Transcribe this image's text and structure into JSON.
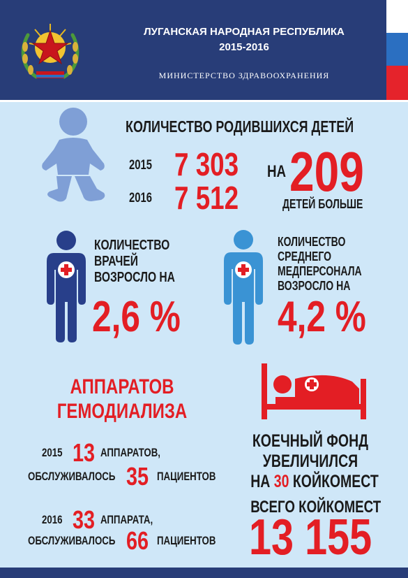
{
  "header": {
    "title_line1": "ЛУГАНСКАЯ НАРОДНАЯ РЕСПУБЛИКА",
    "title_line2": "2015-2016",
    "ministry": "МИНИСТЕРСТВО ЗДРАВООХРАНЕНИЯ",
    "emblem_icon": "lnr-coat-of-arms-icon"
  },
  "births": {
    "title": "КОЛИЧЕСТВО РОДИВШИХСЯ ДЕТЕЙ",
    "year1": "2015",
    "value1": "7 303",
    "year2": "2016",
    "value2": "7 512",
    "diff_prefix": "НА",
    "diff_value": "209",
    "diff_suffix": "ДЕТЕЙ БОЛЬШЕ",
    "icon": "baby-icon"
  },
  "doctors": {
    "line1": "КОЛИЧЕСТВО",
    "line2": "ВРАЧЕЙ",
    "line3": "ВОЗРОСЛО НА",
    "value": "2,6 %",
    "icon": "doctor-icon"
  },
  "nurses": {
    "line1": "КОЛИЧЕСТВО",
    "line2": "СРЕДНЕГО",
    "line3": "МЕДПЕРСОНАЛА",
    "line4": "ВОЗРОСЛО НА",
    "value": "4,2 %",
    "icon": "nurse-icon"
  },
  "dialysis": {
    "title_line1": "АППАРАТОВ",
    "title_line2": "ГЕМОДИАЛИЗА",
    "year1": "2015",
    "units1": "13",
    "units1_label": "АППАРАТОВ,",
    "served1_label": "ОБСЛУЖИВАЛОСЬ",
    "patients1": "35",
    "patients1_label": "ПАЦИЕНТОВ",
    "year2": "2016",
    "units2": "33",
    "units2_label": "АППАРАТА,",
    "served2_label": "ОБСЛУЖИВАЛОСЬ",
    "patients2": "66",
    "patients2_label": "ПАЦИЕНТОВ"
  },
  "beds": {
    "line1": "КОЕЧНЫЙ ФОНД",
    "line2": "УВЕЛИЧИЛСЯ",
    "line3_prefix": "НА",
    "line3_value": "30",
    "line3_suffix": "КОЙКОМЕСТ",
    "total_label": "ВСЕГО КОЙКОМЕСТ",
    "total_value": "13 155",
    "icon": "hospital-bed-icon"
  },
  "colors": {
    "header_bg": "#283d78",
    "content_bg": "#cfe7f8",
    "accent_red": "#e31e24",
    "baby_blue": "#7f9fd6",
    "doctor_navy": "#283f8a",
    "nurse_blue": "#3a93d4"
  }
}
